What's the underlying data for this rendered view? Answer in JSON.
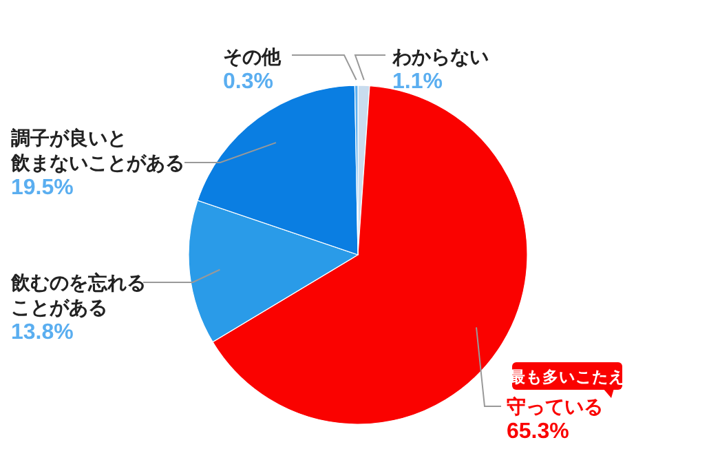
{
  "chart_data": {
    "type": "pie",
    "categories": [
      "わからない",
      "守っている",
      "飲むのを忘れることがある",
      "調子が良いと飲まないことがある",
      "その他"
    ],
    "values": [
      1.1,
      65.3,
      13.8,
      19.5,
      0.3
    ],
    "colors": [
      "#c9dcee",
      "#fa0200",
      "#2a9be8",
      "#0a7ee2",
      "#5aaef0"
    ],
    "value_labels": [
      "1.1%",
      "65.3%",
      "13.8%",
      "19.5%",
      "0.3%"
    ],
    "annotations": [
      "最も多いこたえ"
    ]
  }
}
